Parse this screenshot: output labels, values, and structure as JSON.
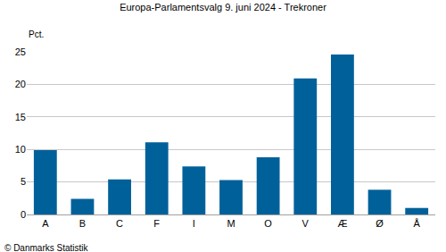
{
  "chart_data": {
    "type": "bar",
    "title": "Europa-Parlamentsvalg 9. juni 2024 - Trekroner",
    "ylabel": "Pct.",
    "source": "© Danmarks Statistik",
    "categories": [
      "A",
      "B",
      "C",
      "F",
      "I",
      "M",
      "O",
      "V",
      "Æ",
      "Ø",
      "Å"
    ],
    "values": [
      9.9,
      2.4,
      5.4,
      11.1,
      7.4,
      5.3,
      8.8,
      20.9,
      24.6,
      3.8,
      1.0
    ],
    "color": "#00619a",
    "ylim": [
      0,
      25
    ],
    "yticks": [
      0,
      5,
      10,
      15,
      20,
      25
    ],
    "grid": true
  }
}
